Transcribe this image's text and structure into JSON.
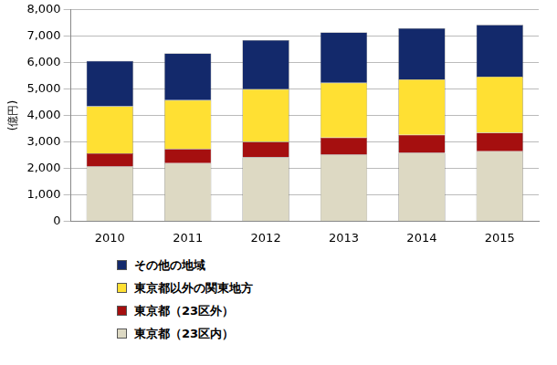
{
  "chart_data": {
    "type": "bar",
    "stacked": true,
    "grid": true,
    "legend": "bottom",
    "y_label": "(億円)",
    "categories": [
      "2010",
      "2011",
      "2012",
      "2013",
      "2014",
      "2015"
    ],
    "series": [
      {
        "name": "東京都（23区内）",
        "color": "#ddd9c3",
        "values": [
          2070,
          2200,
          2420,
          2520,
          2590,
          2650
        ]
      },
      {
        "name": "東京都（23区外）",
        "color": "#a50f0f",
        "values": [
          500,
          530,
          580,
          650,
          680,
          700
        ]
      },
      {
        "name": "東京都以外の関東地方",
        "color": "#ffe033",
        "values": [
          1780,
          1850,
          2000,
          2070,
          2100,
          2120
        ]
      },
      {
        "name": "その他の地域",
        "color": "#13296b",
        "values": [
          1720,
          1770,
          1850,
          1910,
          1930,
          1960
        ]
      }
    ],
    "ylim": [
      0,
      8000
    ],
    "yticks": [
      0,
      {
        "value": 1000,
        "label": "1,000"
      },
      {
        "value": 2000,
        "label": "2,000"
      },
      {
        "value": 3000,
        "label": "3,000"
      },
      {
        "value": 4000,
        "label": "4,000"
      },
      {
        "value": 5000,
        "label": "5,000"
      },
      {
        "value": 6000,
        "label": "6,000"
      },
      {
        "value": 7000,
        "label": "7,000"
      },
      {
        "value": 8000,
        "label": "8,000"
      }
    ]
  }
}
